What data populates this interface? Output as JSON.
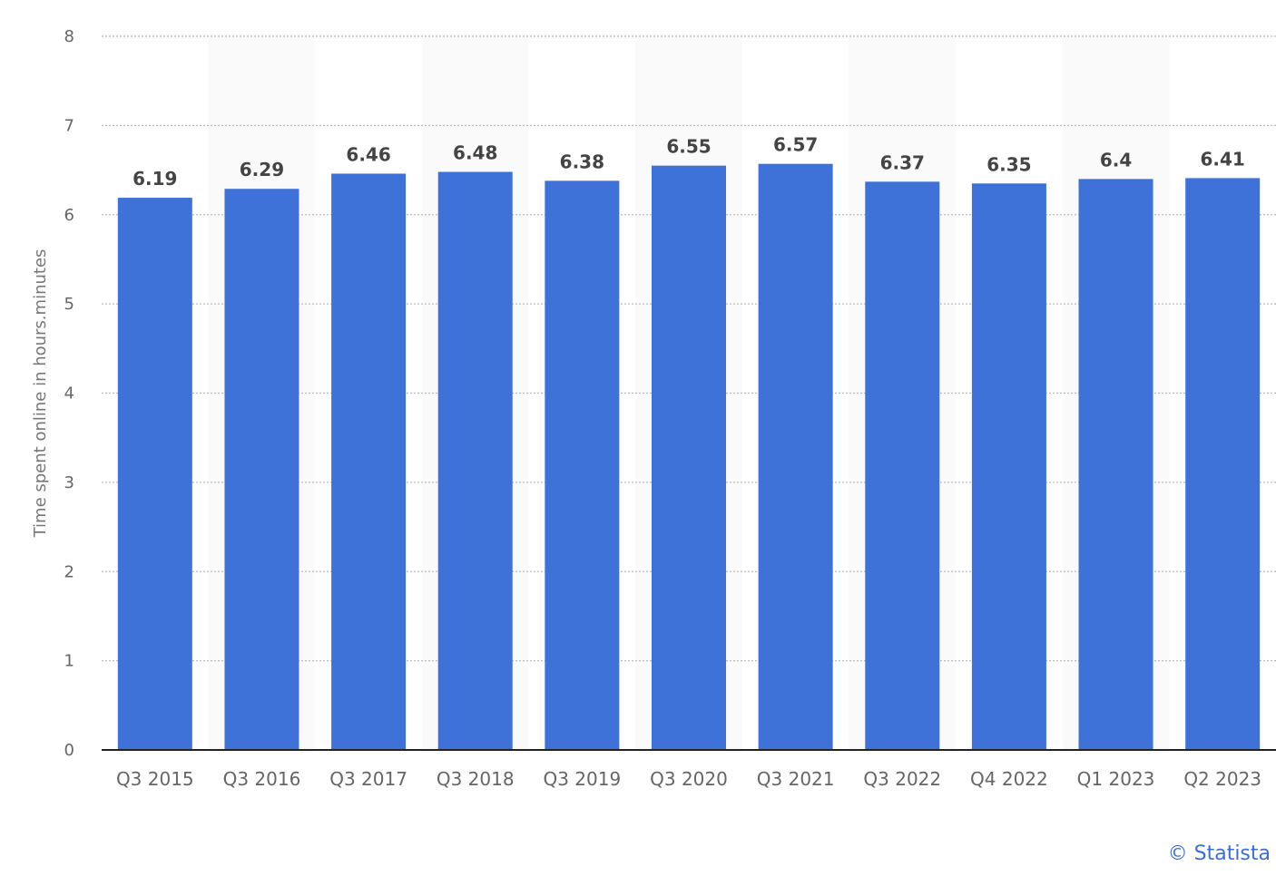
{
  "chart_data": {
    "type": "bar",
    "categories": [
      "Q3 2015",
      "Q3 2016",
      "Q3 2017",
      "Q3 2018",
      "Q3 2019",
      "Q3 2020",
      "Q3 2021",
      "Q3 2022",
      "Q4 2022",
      "Q1 2023",
      "Q2 2023"
    ],
    "values": [
      6.19,
      6.29,
      6.46,
      6.48,
      6.38,
      6.55,
      6.57,
      6.37,
      6.35,
      6.4,
      6.41
    ],
    "value_labels": [
      "6.19",
      "6.29",
      "6.46",
      "6.48",
      "6.38",
      "6.55",
      "6.57",
      "6.37",
      "6.35",
      "6.4",
      "6.41"
    ],
    "title": "",
    "xlabel": "",
    "ylabel": "Time spent online in hours.minutes",
    "ylim": [
      0,
      8
    ],
    "yticks": [
      0,
      1,
      2,
      3,
      4,
      5,
      6,
      7,
      8
    ],
    "grid": true,
    "bar_color": "#3f72d8",
    "alternate_band_color": "#fafafa"
  },
  "credit": "© Statista"
}
